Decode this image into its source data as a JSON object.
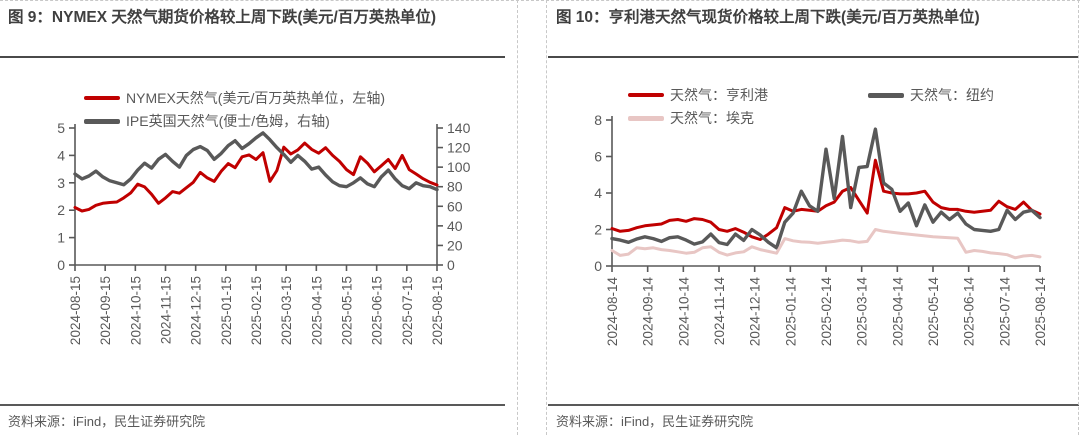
{
  "colors": {
    "red": "#c00000",
    "dark_gray": "#595959",
    "pink": "#e8c6c4",
    "axis": "#595959",
    "title_text": "#3f3f3f",
    "border_dashed": "#c8c8c8"
  },
  "panels": [
    {
      "title": "图 9：NYMEX 天然气期货价格较上周下跌(美元/百万英热单位)",
      "source": "资料来源：iFind，民生证券研究院"
    },
    {
      "title": "图 10：亨利港天然气现货价格较上周下跌(美元/百万英热单位)",
      "source": "资料来源：iFind，民生证券研究院"
    }
  ],
  "chart_data": [
    {
      "type": "line",
      "title": "图 9：NYMEX 天然气期货价格较上周下跌(美元/百万英热单位)",
      "legend_position": "top-left",
      "grid": false,
      "x_labels": [
        "2024-08-15",
        "2024-09-15",
        "2024-10-15",
        "2024-11-15",
        "2024-12-15",
        "2025-01-15",
        "2025-02-15",
        "2025-03-15",
        "2025-04-15",
        "2025-05-15",
        "2025-06-15",
        "2025-07-15",
        "2025-08-15"
      ],
      "y_left": {
        "min": 0,
        "max": 5,
        "ticks": [
          0,
          1,
          2,
          3,
          4,
          5
        ],
        "label": "美元/百万英热单位"
      },
      "y_right": {
        "min": 0,
        "max": 140,
        "ticks": [
          0,
          20,
          40,
          60,
          80,
          100,
          120,
          140
        ],
        "label": "便士/色姆"
      },
      "series": [
        {
          "name": "NYMEX天然气(美元/百万英热单位，左轴)",
          "axis": "left",
          "color": "#c00000",
          "values": [
            2.1,
            1.97,
            2.03,
            2.18,
            2.25,
            2.28,
            2.3,
            2.45,
            2.63,
            2.95,
            2.85,
            2.58,
            2.25,
            2.45,
            2.68,
            2.62,
            2.82,
            3.02,
            3.38,
            3.18,
            3.05,
            3.42,
            3.7,
            3.55,
            3.95,
            4.02,
            3.85,
            4.1,
            3.05,
            3.45,
            4.3,
            4.05,
            4.2,
            4.45,
            4.22,
            4.08,
            4.28,
            4.0,
            3.78,
            3.48,
            3.3,
            3.95,
            3.72,
            3.4,
            3.62,
            3.85,
            3.52,
            4.0,
            3.48,
            3.32,
            3.15,
            3.02,
            2.92
          ]
        },
        {
          "name": "IPE英国天然气(便士/色姆，右轴)",
          "axis": "right",
          "color": "#595959",
          "values": [
            93,
            88,
            91,
            96,
            90,
            86,
            84,
            82,
            88,
            97,
            104,
            99,
            108,
            113,
            106,
            100,
            112,
            118,
            121,
            117,
            108,
            114,
            122,
            127,
            119,
            124,
            130,
            135,
            128,
            120,
            113,
            105,
            112,
            106,
            98,
            100,
            92,
            85,
            81,
            80,
            84,
            89,
            83,
            80,
            90,
            97,
            88,
            81,
            78,
            84,
            81,
            80,
            77
          ]
        }
      ]
    },
    {
      "type": "line",
      "title": "图 10：亨利港天然气现货价格较上周下跌(美元/百万英热单位)",
      "legend_position": "top-left",
      "grid": false,
      "x_labels": [
        "2024-08-14",
        "2024-09-14",
        "2024-10-14",
        "2024-11-14",
        "2024-12-14",
        "2025-01-14",
        "2025-02-14",
        "2025-03-14",
        "2025-04-14",
        "2025-05-14",
        "2025-06-14",
        "2025-07-14",
        "2025-08-14"
      ],
      "y_left": {
        "min": 0,
        "max": 8,
        "ticks": [
          0,
          2,
          4,
          6,
          8
        ],
        "label": "美元/百万英热单位"
      },
      "series": [
        {
          "name": "天然气：亨利港",
          "axis": "left",
          "color": "#c00000",
          "values": [
            2.05,
            1.9,
            1.95,
            2.1,
            2.2,
            2.25,
            2.3,
            2.5,
            2.55,
            2.45,
            2.6,
            2.55,
            2.4,
            2.0,
            1.9,
            2.05,
            1.85,
            1.6,
            1.45,
            1.75,
            2.1,
            3.2,
            3.0,
            3.1,
            3.05,
            3.0,
            3.3,
            3.5,
            4.1,
            4.3,
            3.6,
            2.9,
            5.8,
            4.1,
            4.0,
            3.95,
            3.95,
            4.0,
            4.1,
            3.5,
            3.2,
            3.1,
            3.1,
            3.0,
            2.95,
            3.0,
            3.05,
            3.55,
            3.25,
            3.1,
            3.5,
            3.05,
            2.85
          ]
        },
        {
          "name": "天然气：纽约",
          "axis": "left",
          "color": "#595959",
          "values": [
            1.5,
            1.42,
            1.3,
            1.48,
            1.6,
            1.5,
            1.35,
            1.55,
            1.6,
            1.42,
            1.2,
            1.32,
            1.75,
            1.28,
            1.18,
            1.75,
            1.4,
            2.0,
            1.7,
            1.3,
            1.0,
            2.4,
            2.9,
            4.1,
            3.3,
            3.0,
            6.4,
            3.7,
            7.1,
            3.2,
            5.4,
            5.45,
            7.5,
            4.55,
            4.2,
            3.0,
            3.45,
            2.2,
            3.35,
            2.4,
            2.95,
            2.55,
            2.9,
            2.3,
            2.0,
            1.95,
            1.9,
            2.0,
            3.05,
            2.55,
            2.95,
            3.05,
            2.65
          ]
        },
        {
          "name": "天然气：埃克",
          "axis": "left",
          "color": "#e8c6c4",
          "values": [
            0.85,
            0.58,
            0.65,
            1.0,
            0.95,
            1.0,
            0.9,
            0.85,
            0.78,
            0.7,
            0.75,
            1.0,
            1.05,
            0.75,
            0.6,
            0.72,
            0.78,
            1.05,
            0.9,
            0.8,
            0.7,
            1.5,
            1.38,
            1.32,
            1.3,
            1.25,
            1.3,
            1.35,
            1.42,
            1.38,
            1.3,
            1.35,
            2.0,
            1.9,
            1.85,
            1.8,
            1.75,
            1.7,
            1.65,
            1.6,
            1.58,
            1.55,
            1.52,
            0.75,
            0.85,
            0.8,
            0.72,
            0.68,
            0.62,
            0.45,
            0.55,
            0.58,
            0.5
          ]
        }
      ]
    }
  ]
}
